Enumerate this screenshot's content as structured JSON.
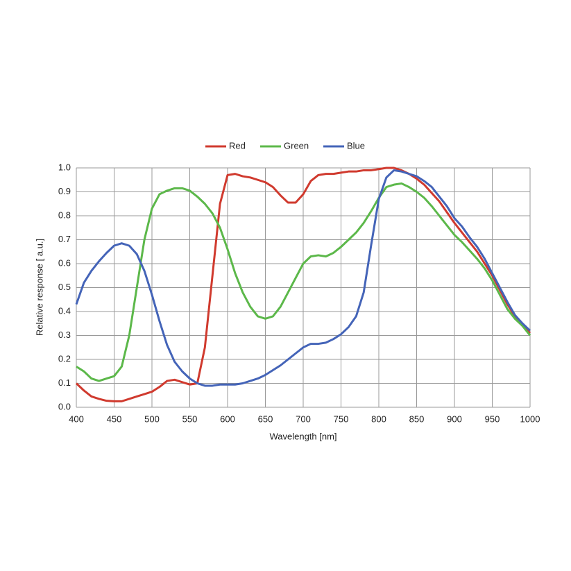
{
  "chart_data": {
    "type": "line",
    "x_label": "Wavelength [nm]",
    "y_label": "Relative response [ a.u.]",
    "x": [
      400,
      410,
      420,
      430,
      440,
      450,
      460,
      470,
      480,
      490,
      500,
      510,
      520,
      530,
      540,
      550,
      560,
      570,
      580,
      590,
      600,
      610,
      620,
      630,
      640,
      650,
      660,
      670,
      680,
      690,
      700,
      710,
      720,
      730,
      740,
      750,
      760,
      770,
      780,
      790,
      800,
      810,
      820,
      830,
      840,
      850,
      860,
      870,
      880,
      890,
      900,
      910,
      920,
      930,
      940,
      950,
      960,
      970,
      980,
      990,
      1000
    ],
    "series": [
      {
        "name": "Red",
        "color": "#d03a2e",
        "values": [
          0.1,
          0.07,
          0.045,
          0.035,
          0.027,
          0.025,
          0.025,
          0.035,
          0.045,
          0.055,
          0.065,
          0.085,
          0.11,
          0.115,
          0.105,
          0.095,
          0.1,
          0.25,
          0.55,
          0.85,
          0.97,
          0.975,
          0.965,
          0.96,
          0.95,
          0.94,
          0.92,
          0.885,
          0.855,
          0.855,
          0.89,
          0.945,
          0.97,
          0.975,
          0.975,
          0.98,
          0.985,
          0.985,
          0.99,
          0.99,
          0.995,
          1.0,
          1.0,
          0.99,
          0.975,
          0.955,
          0.93,
          0.895,
          0.86,
          0.815,
          0.77,
          0.73,
          0.69,
          0.65,
          0.6,
          0.55,
          0.49,
          0.43,
          0.38,
          0.34,
          0.31
        ]
      },
      {
        "name": "Green",
        "color": "#5cb84a",
        "values": [
          0.17,
          0.15,
          0.12,
          0.11,
          0.12,
          0.13,
          0.17,
          0.3,
          0.5,
          0.7,
          0.83,
          0.89,
          0.905,
          0.915,
          0.915,
          0.905,
          0.88,
          0.85,
          0.81,
          0.75,
          0.66,
          0.56,
          0.48,
          0.42,
          0.38,
          0.37,
          0.38,
          0.42,
          0.48,
          0.54,
          0.6,
          0.63,
          0.635,
          0.63,
          0.645,
          0.67,
          0.7,
          0.73,
          0.77,
          0.82,
          0.875,
          0.92,
          0.93,
          0.935,
          0.92,
          0.9,
          0.875,
          0.84,
          0.8,
          0.76,
          0.72,
          0.69,
          0.655,
          0.62,
          0.58,
          0.53,
          0.47,
          0.41,
          0.37,
          0.34,
          0.3
        ]
      },
      {
        "name": "Blue",
        "color": "#4464b8",
        "values": [
          0.43,
          0.52,
          0.57,
          0.61,
          0.645,
          0.675,
          0.685,
          0.675,
          0.64,
          0.57,
          0.47,
          0.36,
          0.26,
          0.19,
          0.15,
          0.12,
          0.1,
          0.09,
          0.09,
          0.095,
          0.095,
          0.095,
          0.1,
          0.11,
          0.12,
          0.135,
          0.155,
          0.175,
          0.2,
          0.225,
          0.25,
          0.265,
          0.265,
          0.27,
          0.285,
          0.305,
          0.335,
          0.38,
          0.48,
          0.68,
          0.87,
          0.96,
          0.99,
          0.985,
          0.975,
          0.965,
          0.945,
          0.92,
          0.88,
          0.84,
          0.79,
          0.755,
          0.71,
          0.67,
          0.62,
          0.56,
          0.5,
          0.44,
          0.385,
          0.35,
          0.32
        ]
      }
    ],
    "xlim": [
      400,
      1000
    ],
    "xticks": [
      400,
      450,
      500,
      550,
      600,
      650,
      700,
      750,
      800,
      850,
      900,
      950,
      1000
    ],
    "ylim": [
      0,
      1
    ],
    "yticks": [
      {
        "value": 0,
        "label": "0.0"
      },
      0.1,
      0.2,
      0.3,
      0.4,
      0.5,
      0.6,
      0.7,
      0.8,
      0.9,
      {
        "value": 1,
        "label": "1.0"
      }
    ],
    "grid": true,
    "legend": "top"
  }
}
